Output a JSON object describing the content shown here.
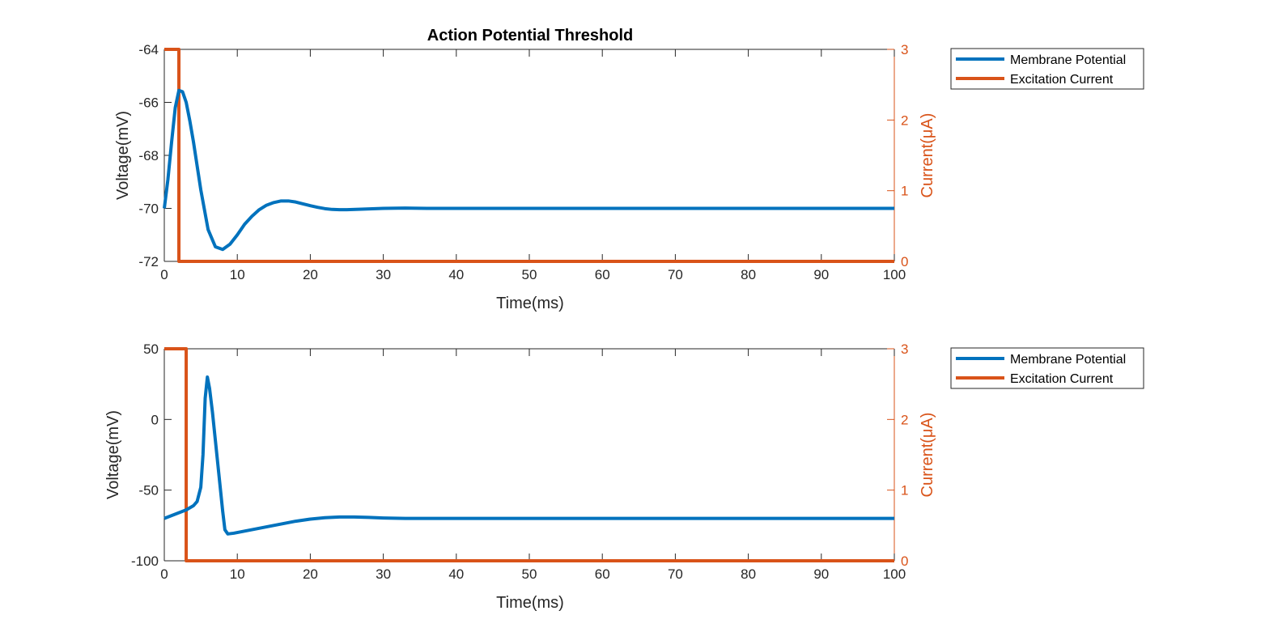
{
  "colors": {
    "membrane": "#0072BD",
    "current": "#D95319",
    "axis_left": "#262626",
    "axis_right": "#D95319"
  },
  "chart_data": [
    {
      "type": "line",
      "title": "Action Potential Threshold",
      "xlabel": "Time(ms)",
      "ylabel_left": "Voltage(mV)",
      "ylabel_right": "Current(μA)",
      "xlim": [
        0,
        100
      ],
      "ylim_left": [
        -72,
        -64
      ],
      "ylim_right": [
        0,
        3
      ],
      "x_ticks": [
        0,
        10,
        20,
        30,
        40,
        50,
        60,
        70,
        80,
        90,
        100
      ],
      "y_left_ticks": [
        -72,
        -70,
        -68,
        -66,
        -64
      ],
      "y_right_ticks": [
        0,
        1,
        2,
        3
      ],
      "grid": false,
      "legend_position": "outside-right-top",
      "series": [
        {
          "name": "Membrane Potential",
          "axis": "left",
          "color_key": "membrane",
          "x": [
            0,
            0.5,
            1,
            1.5,
            2,
            2.5,
            3,
            3.5,
            4,
            5,
            6,
            7,
            8,
            9,
            10,
            11,
            12,
            13,
            14,
            15,
            16,
            17,
            18,
            19,
            20,
            21,
            22,
            23,
            24,
            25,
            27,
            30,
            33,
            36,
            40,
            50,
            60,
            70,
            80,
            90,
            100
          ],
          "y": [
            -70,
            -68.9,
            -67.5,
            -66.2,
            -65.55,
            -65.6,
            -66.0,
            -66.7,
            -67.5,
            -69.3,
            -70.8,
            -71.45,
            -71.55,
            -71.35,
            -71.0,
            -70.6,
            -70.3,
            -70.05,
            -69.88,
            -69.78,
            -69.72,
            -69.72,
            -69.76,
            -69.83,
            -69.9,
            -69.96,
            -70.01,
            -70.04,
            -70.05,
            -70.05,
            -70.03,
            -70.0,
            -69.99,
            -70.0,
            -70.0,
            -70.0,
            -70.0,
            -70.0,
            -70.0,
            -70.0,
            -70.0
          ]
        },
        {
          "name": "Excitation Current",
          "axis": "right",
          "color_key": "current",
          "x": [
            0,
            2,
            2,
            100
          ],
          "y": [
            3,
            3,
            0,
            0
          ]
        }
      ]
    },
    {
      "type": "line",
      "title": "",
      "xlabel": "Time(ms)",
      "ylabel_left": "Voltage(mV)",
      "ylabel_right": "Current(μA)",
      "xlim": [
        0,
        100
      ],
      "ylim_left": [
        -100,
        50
      ],
      "ylim_right": [
        0,
        3
      ],
      "x_ticks": [
        0,
        10,
        20,
        30,
        40,
        50,
        60,
        70,
        80,
        90,
        100
      ],
      "y_left_ticks": [
        -100,
        -50,
        0,
        50
      ],
      "y_right_ticks": [
        0,
        1,
        2,
        3
      ],
      "grid": false,
      "legend_position": "outside-right-top",
      "series": [
        {
          "name": "Membrane Potential",
          "axis": "left",
          "color_key": "membrane",
          "x": [
            0,
            1,
            2,
            3,
            4,
            4.5,
            5,
            5.3,
            5.6,
            5.9,
            6.2,
            6.6,
            7,
            7.5,
            8,
            8.3,
            8.7,
            9.5,
            10.5,
            12,
            14,
            16,
            18,
            20,
            22,
            24,
            26,
            28,
            30,
            33,
            36,
            40,
            50,
            60,
            70,
            80,
            90,
            100
          ],
          "y": [
            -70,
            -68,
            -66,
            -64,
            -61,
            -58,
            -48,
            -25,
            15,
            30,
            22,
            5,
            -15,
            -40,
            -65,
            -78,
            -81,
            -80.5,
            -79.5,
            -78,
            -76,
            -74,
            -72,
            -70.5,
            -69.5,
            -69,
            -69,
            -69.3,
            -69.7,
            -70,
            -70,
            -70,
            -70,
            -70,
            -70,
            -70,
            -70,
            -70
          ]
        },
        {
          "name": "Excitation Current",
          "axis": "right",
          "color_key": "current",
          "x": [
            0,
            3,
            3,
            100
          ],
          "y": [
            3,
            3,
            0,
            0
          ]
        }
      ]
    }
  ]
}
